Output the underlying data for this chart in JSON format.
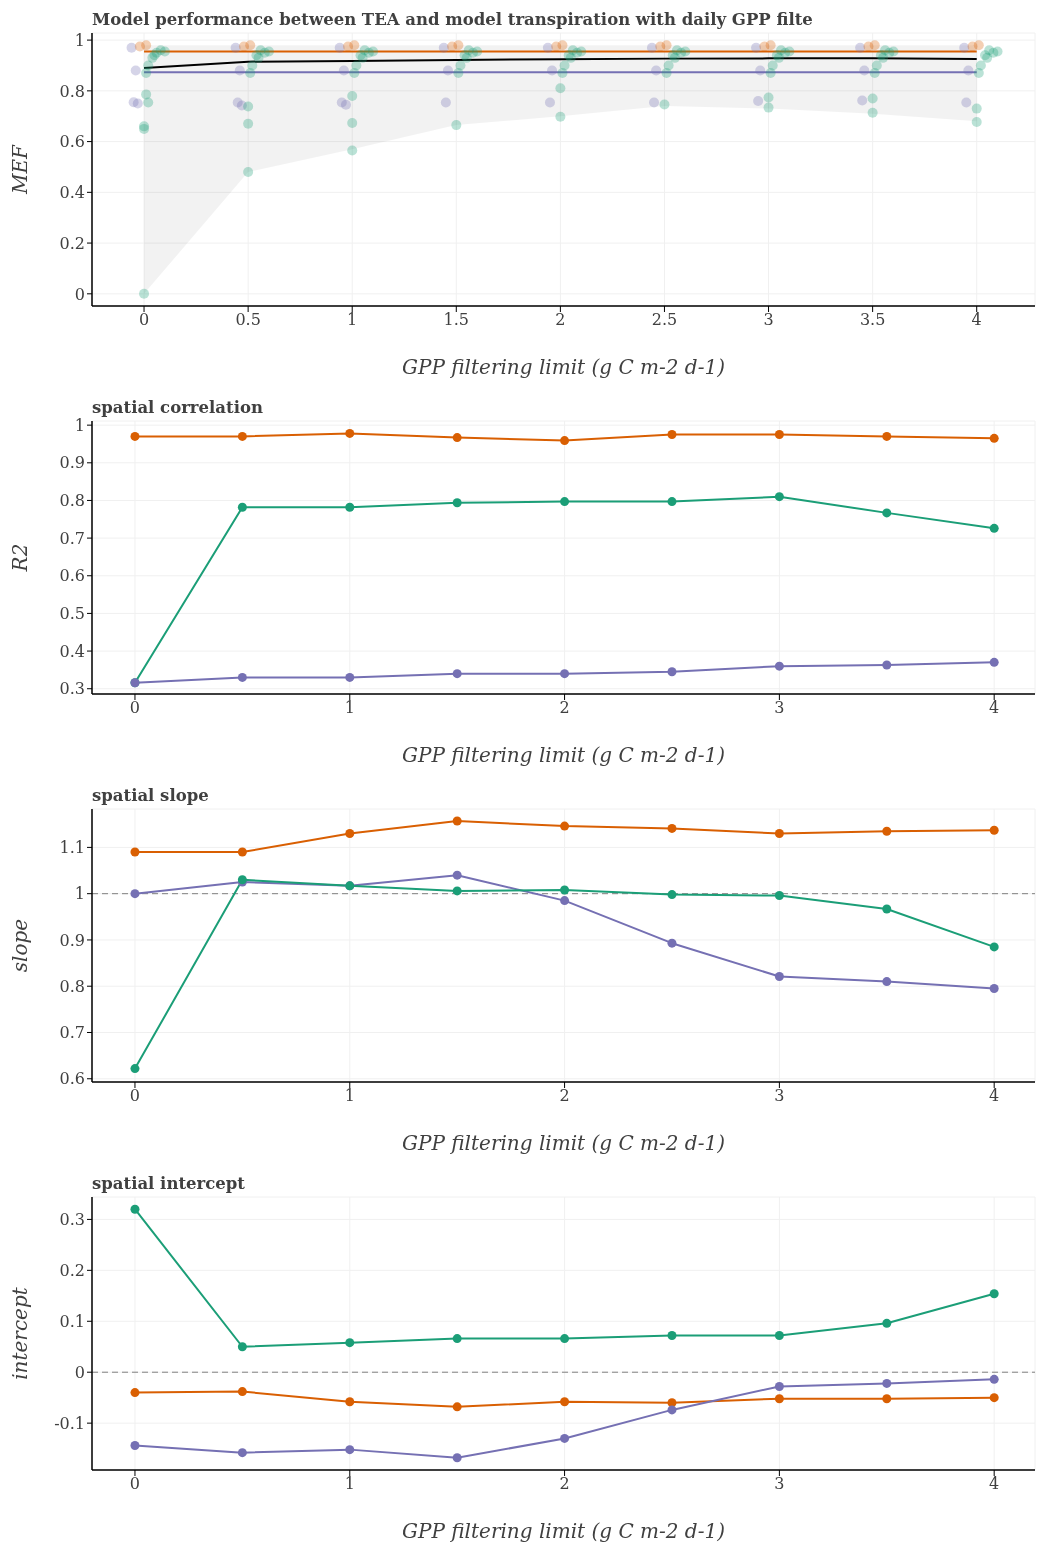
{
  "chart_data": [
    {
      "type": "line",
      "title": "Model performance between TEA and model transpiration with daily GPP filte",
      "xlabel": "GPP filtering limit (g C m-2 d-1)",
      "ylabel": "MEF",
      "x": [
        0,
        0.5,
        1,
        1.5,
        2,
        2.5,
        3,
        3.5,
        4
      ],
      "xlim": [
        -0.25,
        4.28
      ],
      "ylim": [
        -0.048,
        1.028
      ],
      "xticks": [
        0,
        0.5,
        1,
        1.5,
        2,
        2.5,
        3,
        3.5,
        4
      ],
      "yticks": [
        0,
        0.2,
        0.4,
        0.6,
        0.8,
        1
      ],
      "grid": true,
      "series": [
        {
          "type": "scatter",
          "marker": "circle",
          "color": "#7570b3",
          "x": [
            -0.06,
            -0.04,
            -0.05,
            -0.03,
            0.44,
            0.46,
            0.45,
            0.47,
            0.94,
            0.96,
            0.95,
            0.97,
            1.44,
            1.46,
            1.45,
            1.94,
            1.96,
            1.95,
            2.44,
            2.46,
            2.45,
            2.94,
            2.96,
            2.95,
            3.44,
            3.46,
            3.45,
            3.94,
            3.96,
            3.95
          ],
          "values": [
            0.97,
            0.88,
            0.755,
            0.75,
            0.97,
            0.88,
            0.754,
            0.742,
            0.97,
            0.88,
            0.754,
            0.745,
            0.97,
            0.88,
            0.754,
            0.97,
            0.88,
            0.754,
            0.97,
            0.88,
            0.754,
            0.97,
            0.88,
            0.76,
            0.97,
            0.88,
            0.762,
            0.97,
            0.88,
            0.754
          ]
        },
        {
          "type": "scatter",
          "marker": "circle",
          "color": "#d95f02",
          "x": [
            -0.02,
            0.01,
            0.48,
            0.51,
            0.98,
            1.01,
            1.48,
            1.51,
            1.98,
            2.01,
            2.48,
            2.51,
            2.98,
            3.01,
            3.48,
            3.51,
            3.98,
            4.01
          ],
          "values": [
            0.975,
            0.98,
            0.975,
            0.98,
            0.975,
            0.98,
            0.975,
            0.98,
            0.975,
            0.98,
            0.975,
            0.98,
            0.975,
            0.98,
            0.975,
            0.98,
            0.975,
            0.98
          ]
        },
        {
          "type": "scatter",
          "marker": "circle",
          "color": "#1b9e77",
          "x": [
            0.02,
            0.04,
            0.06,
            0.08,
            0.05,
            0.1,
            0.01,
            0.01,
            0.02,
            0.0,
            0.0,
            0.0,
            0.52,
            0.55,
            0.58,
            0.56,
            0.54,
            0.6,
            0.51,
            0.5,
            0.5,
            0.5,
            1.02,
            1.05,
            1.08,
            1.06,
            1.04,
            1.1,
            1.01,
            1.0,
            1.0,
            1.0,
            1.52,
            1.55,
            1.58,
            1.56,
            1.54,
            1.6,
            1.51,
            1.5,
            2.02,
            2.05,
            2.08,
            2.06,
            2.04,
            2.1,
            2.01,
            2.0,
            2.0,
            2.52,
            2.55,
            2.58,
            2.56,
            2.54,
            2.6,
            2.51,
            2.5,
            3.02,
            3.05,
            3.08,
            3.06,
            3.04,
            3.1,
            3.01,
            3.0,
            3.0,
            3.52,
            3.55,
            3.58,
            3.56,
            3.54,
            3.6,
            3.51,
            3.5,
            3.5,
            4.02,
            4.05,
            4.08,
            4.06,
            4.04,
            4.1,
            4.01,
            4.0,
            4.0
          ],
          "values": [
            0.9,
            0.93,
            0.95,
            0.96,
            0.94,
            0.955,
            0.87,
            0.786,
            0.754,
            0.66,
            0.65,
            0,
            0.9,
            0.93,
            0.95,
            0.96,
            0.94,
            0.955,
            0.87,
            0.738,
            0.67,
            0.48,
            0.9,
            0.93,
            0.95,
            0.96,
            0.94,
            0.955,
            0.87,
            0.78,
            0.673,
            0.565,
            0.9,
            0.93,
            0.95,
            0.96,
            0.94,
            0.955,
            0.87,
            0.665,
            0.9,
            0.93,
            0.95,
            0.96,
            0.94,
            0.955,
            0.87,
            0.81,
            0.698,
            0.9,
            0.93,
            0.95,
            0.96,
            0.94,
            0.955,
            0.87,
            0.746,
            0.9,
            0.93,
            0.95,
            0.96,
            0.94,
            0.955,
            0.87,
            0.774,
            0.734,
            0.9,
            0.93,
            0.95,
            0.96,
            0.94,
            0.955,
            0.87,
            0.77,
            0.714,
            0.9,
            0.93,
            0.95,
            0.96,
            0.94,
            0.955,
            0.87,
            0.73,
            0.677
          ]
        },
        {
          "marker": "none",
          "color": "#d95f02",
          "values": [
            0.955,
            0.955,
            0.955,
            0.955,
            0.955,
            0.955,
            0.955,
            0.955,
            0.955
          ]
        },
        {
          "marker": "none",
          "color": "#7570b3",
          "values": [
            0.873,
            0.873,
            0.873,
            0.873,
            0.873,
            0.873,
            0.873,
            0.873,
            0.873
          ]
        },
        {
          "marker": "none",
          "color": "#000000",
          "values": [
            0.89,
            0.915,
            0.918,
            0.922,
            0.925,
            0.927,
            0.928,
            0.928,
            0.926
          ],
          "lower": [
            0,
            0.48,
            0.57,
            0.665,
            0.7,
            0.74,
            0.73,
            0.71,
            0.68
          ],
          "upper": [
            0.98,
            0.98,
            0.98,
            0.98,
            0.98,
            0.98,
            0.98,
            0.98,
            0.98
          ]
        }
      ]
    },
    {
      "type": "line",
      "title": "spatial correlation",
      "xlabel": "GPP filtering limit (g C m-2 d-1)",
      "ylabel": "R2",
      "x": [
        0,
        0.5,
        1,
        1.5,
        2,
        2.5,
        3,
        3.5,
        4
      ],
      "xlim": [
        -0.2,
        4.19
      ],
      "ylim": [
        0.286,
        1.011
      ],
      "xticks": [
        0,
        1,
        2,
        3,
        4
      ],
      "yticks": [
        0.3,
        0.4,
        0.5,
        0.6,
        0.7,
        0.8,
        0.9,
        1
      ],
      "grid": true,
      "marker": "circle",
      "series": [
        {
          "color": "#d95f02",
          "values": [
            0.97,
            0.97,
            0.978,
            0.967,
            0.959,
            0.975,
            0.975,
            0.97,
            0.965
          ]
        },
        {
          "color": "#1b9e77",
          "values": [
            0.316,
            0.782,
            0.782,
            0.794,
            0.797,
            0.797,
            0.81,
            0.767,
            0.726
          ]
        },
        {
          "color": "#7570b3",
          "values": [
            0.316,
            0.33,
            0.33,
            0.34,
            0.34,
            0.345,
            0.36,
            0.363,
            0.37
          ]
        }
      ]
    },
    {
      "type": "line",
      "title": "spatial slope",
      "xlabel": "GPP filtering limit (g C m-2 d-1)",
      "ylabel": "slope",
      "x": [
        0,
        0.5,
        1,
        1.5,
        2,
        2.5,
        3,
        3.5,
        4
      ],
      "xlim": [
        -0.2,
        4.19
      ],
      "ylim": [
        0.593,
        1.183
      ],
      "xticks": [
        0,
        1,
        2,
        3,
        4
      ],
      "yticks": [
        0.6,
        0.7,
        0.8,
        0.9,
        1,
        1.1
      ],
      "grid": true,
      "marker": "circle",
      "ref_lines": [
        {
          "axis": "y",
          "value": 1,
          "color": "#808080",
          "line_style": "dashed"
        }
      ],
      "series": [
        {
          "color": "#d95f02",
          "values": [
            1.09,
            1.09,
            1.13,
            1.157,
            1.146,
            1.141,
            1.13,
            1.135,
            1.137
          ]
        },
        {
          "color": "#7570b3",
          "values": [
            1.0,
            1.025,
            1.017,
            1.04,
            0.985,
            0.893,
            0.821,
            0.81,
            0.795
          ]
        },
        {
          "color": "#1b9e77",
          "values": [
            0.622,
            1.03,
            1.017,
            1.006,
            1.008,
            0.998,
            0.996,
            0.967,
            0.885
          ]
        }
      ]
    },
    {
      "type": "line",
      "title": "spatial intercept",
      "xlabel": "GPP filtering limit (g C m-2 d-1)",
      "ylabel": "intercept",
      "x": [
        0,
        0.5,
        1,
        1.5,
        2,
        2.5,
        3,
        3.5,
        4
      ],
      "xlim": [
        -0.2,
        4.19
      ],
      "ylim": [
        -0.192,
        0.344
      ],
      "xticks": [
        0,
        1,
        2,
        3,
        4
      ],
      "yticks": [
        -0.1,
        0,
        0.1,
        0.2,
        0.3
      ],
      "grid": true,
      "marker": "circle",
      "ref_lines": [
        {
          "axis": "y",
          "value": 0,
          "color": "#808080",
          "line_style": "dashed"
        }
      ],
      "series": [
        {
          "color": "#1b9e77",
          "values": [
            0.32,
            0.05,
            0.058,
            0.066,
            0.066,
            0.072,
            0.072,
            0.096,
            0.154
          ]
        },
        {
          "color": "#d95f02",
          "values": [
            -0.04,
            -0.038,
            -0.058,
            -0.068,
            -0.058,
            -0.06,
            -0.052,
            -0.052,
            -0.05
          ]
        },
        {
          "color": "#7570b3",
          "values": [
            -0.144,
            -0.158,
            -0.152,
            -0.168,
            -0.13,
            -0.074,
            -0.028,
            -0.022,
            -0.014
          ]
        }
      ]
    }
  ]
}
